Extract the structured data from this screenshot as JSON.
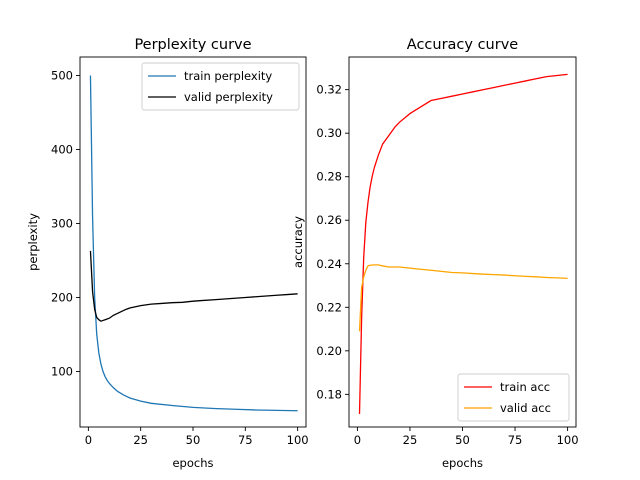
{
  "chart_data": [
    {
      "type": "line",
      "title": "Perplexity curve",
      "xlabel": "epochs",
      "ylabel": "perplexity",
      "xlim": [
        -4,
        104
      ],
      "ylim": [
        25,
        525
      ],
      "xticks": [
        0,
        25,
        50,
        75,
        100
      ],
      "yticks": [
        100,
        200,
        300,
        400,
        500
      ],
      "grid": false,
      "legend": "top-right",
      "series": [
        {
          "name": "train perplexity",
          "color": "#1f77b4",
          "points": [
            [
              1,
              500
            ],
            [
              2,
              310
            ],
            [
              3,
              200
            ],
            [
              4,
              150
            ],
            [
              5,
              125
            ],
            [
              6,
              110
            ],
            [
              7,
              100
            ],
            [
              8,
              93
            ],
            [
              9,
              88
            ],
            [
              10,
              84
            ],
            [
              12,
              78
            ],
            [
              14,
              73
            ],
            [
              17,
              68
            ],
            [
              20,
              64
            ],
            [
              25,
              60
            ],
            [
              30,
              57
            ],
            [
              40,
              54
            ],
            [
              50,
              51.5
            ],
            [
              60,
              50
            ],
            [
              70,
              49
            ],
            [
              80,
              48
            ],
            [
              90,
              47.5
            ],
            [
              100,
              47
            ]
          ]
        },
        {
          "name": "valid perplexity",
          "color": "#000000",
          "points": [
            [
              1,
              263
            ],
            [
              2,
              208
            ],
            [
              3,
              184
            ],
            [
              4,
              173
            ],
            [
              5,
              170
            ],
            [
              6,
              168
            ],
            [
              7,
              169
            ],
            [
              8,
              170
            ],
            [
              10,
              172
            ],
            [
              12,
              176
            ],
            [
              15,
              180
            ],
            [
              18,
              184
            ],
            [
              20,
              186
            ],
            [
              25,
              189
            ],
            [
              30,
              191
            ],
            [
              35,
              192
            ],
            [
              40,
              193
            ],
            [
              45,
              193.5
            ],
            [
              50,
              195
            ],
            [
              55,
              196
            ],
            [
              60,
              197
            ],
            [
              65,
              198
            ],
            [
              70,
              199
            ],
            [
              75,
              200
            ],
            [
              80,
              201
            ],
            [
              85,
              202
            ],
            [
              90,
              203
            ],
            [
              95,
              204
            ],
            [
              100,
              205
            ]
          ]
        }
      ]
    },
    {
      "type": "line",
      "title": "Accuracy curve",
      "xlabel": "epochs",
      "ylabel": "accuracy",
      "xlim": [
        -4,
        104
      ],
      "ylim": [
        0.165,
        0.335
      ],
      "xticks": [
        0,
        25,
        50,
        75,
        100
      ],
      "yticks": [
        0.18,
        0.2,
        0.22,
        0.24,
        0.26,
        0.28,
        0.3,
        0.32
      ],
      "grid": false,
      "legend": "bottom-right",
      "series": [
        {
          "name": "train acc",
          "color": "#ff0000",
          "points": [
            [
              1,
              0.171
            ],
            [
              2,
              0.215
            ],
            [
              3,
              0.243
            ],
            [
              4,
              0.259
            ],
            [
              5,
              0.268
            ],
            [
              6,
              0.275
            ],
            [
              7,
              0.28
            ],
            [
              8,
              0.284
            ],
            [
              9,
              0.287
            ],
            [
              10,
              0.29
            ],
            [
              12,
              0.295
            ],
            [
              15,
              0.299
            ],
            [
              18,
              0.303
            ],
            [
              20,
              0.305
            ],
            [
              25,
              0.309
            ],
            [
              30,
              0.312
            ],
            [
              35,
              0.315
            ],
            [
              40,
              0.316
            ],
            [
              45,
              0.317
            ],
            [
              50,
              0.318
            ],
            [
              55,
              0.319
            ],
            [
              60,
              0.32
            ],
            [
              65,
              0.321
            ],
            [
              70,
              0.322
            ],
            [
              75,
              0.323
            ],
            [
              80,
              0.324
            ],
            [
              85,
              0.325
            ],
            [
              90,
              0.326
            ],
            [
              95,
              0.3265
            ],
            [
              100,
              0.327
            ]
          ]
        },
        {
          "name": "valid acc",
          "color": "#ffa500",
          "points": [
            [
              1,
              0.209
            ],
            [
              2,
              0.229
            ],
            [
              3,
              0.234
            ],
            [
              4,
              0.237
            ],
            [
              5,
              0.239
            ],
            [
              6,
              0.2393
            ],
            [
              8,
              0.2395
            ],
            [
              10,
              0.2395
            ],
            [
              12,
              0.239
            ],
            [
              15,
              0.2385
            ],
            [
              20,
              0.2385
            ],
            [
              25,
              0.238
            ],
            [
              30,
              0.2375
            ],
            [
              35,
              0.237
            ],
            [
              40,
              0.2365
            ],
            [
              45,
              0.236
            ],
            [
              50,
              0.2358
            ],
            [
              55,
              0.2355
            ],
            [
              60,
              0.2352
            ],
            [
              65,
              0.235
            ],
            [
              70,
              0.2348
            ],
            [
              75,
              0.2345
            ],
            [
              80,
              0.2342
            ],
            [
              85,
              0.234
            ],
            [
              90,
              0.2337
            ],
            [
              95,
              0.2335
            ],
            [
              100,
              0.2333
            ]
          ]
        }
      ]
    }
  ]
}
